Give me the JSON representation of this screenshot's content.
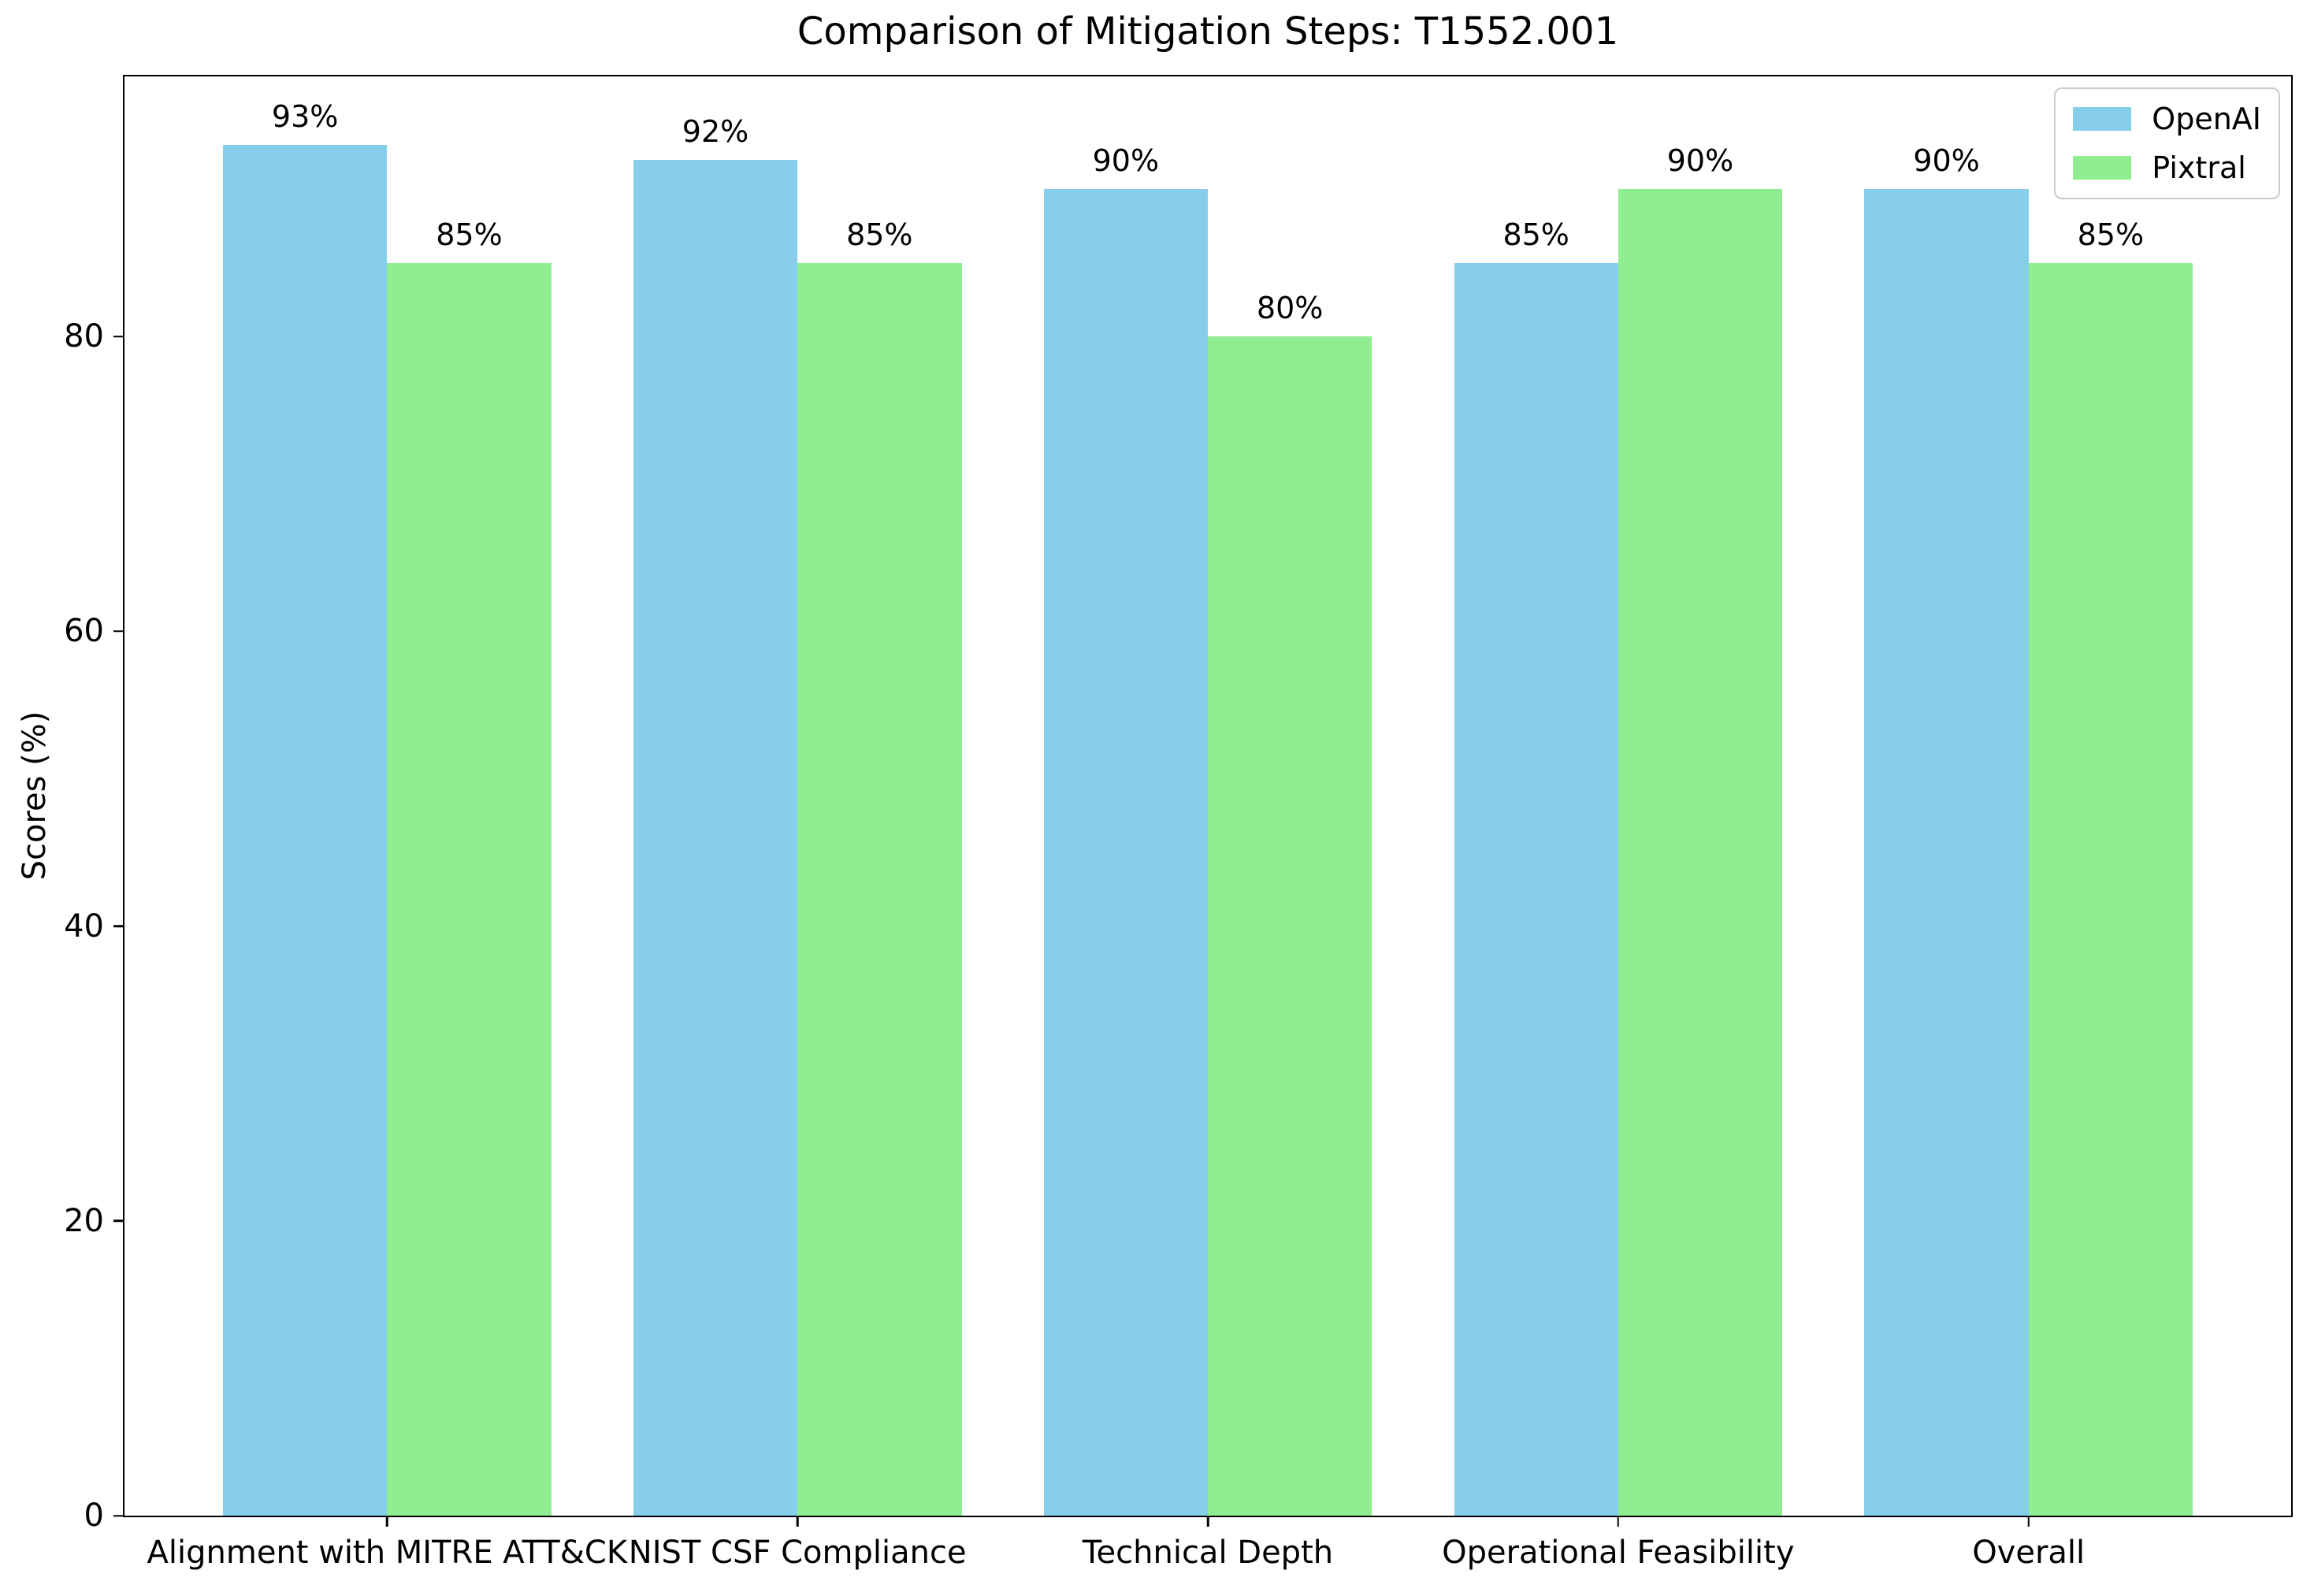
{
  "chart_data": {
    "type": "bar",
    "title": "Comparison of Mitigation Steps: T1552.001",
    "xlabel": "",
    "ylabel": "Scores (%)",
    "categories": [
      "Alignment with MITRE ATT&CK",
      "NIST CSF Compliance",
      "Technical Depth",
      "Operational Feasibility",
      "Overall"
    ],
    "series": [
      {
        "name": "OpenAI",
        "color": "#87CEEB",
        "values": [
          93,
          92,
          90,
          85,
          90
        ],
        "value_labels": [
          "93%",
          "92%",
          "90%",
          "85%",
          "90%"
        ]
      },
      {
        "name": "Pixtral",
        "color": "#90EE90",
        "values": [
          85,
          85,
          80,
          90,
          85
        ],
        "value_labels": [
          "85%",
          "85%",
          "80%",
          "90%",
          "85%"
        ]
      }
    ],
    "yticks": [
      0,
      20,
      40,
      60,
      80
    ],
    "ylim": [
      0,
      97.65
    ],
    "grid": false,
    "legend_position": "upper right",
    "background_color": "#ffffff",
    "text_color": "#000000"
  }
}
